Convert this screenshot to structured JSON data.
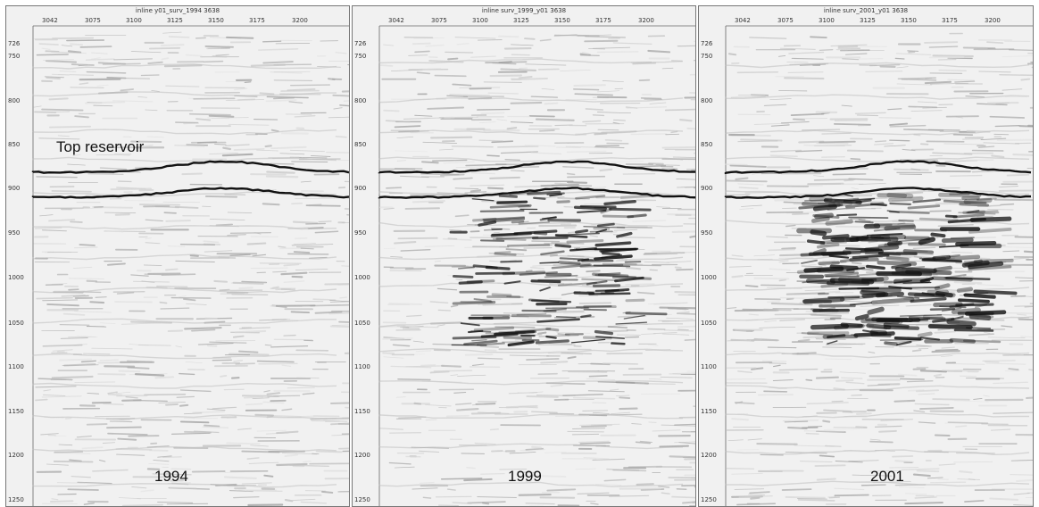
{
  "panels": [
    {
      "title": "inline y01_surv_1994 3638",
      "year": "1994",
      "anomaly": 0
    },
    {
      "title": "inline surv_1999_y01 3638",
      "year": "1999",
      "anomaly": 1
    },
    {
      "title": "inline surv_2001_y01 3638",
      "year": "2001",
      "anomaly": 2
    }
  ],
  "x_ticks": [
    "3042",
    "3075",
    "3100",
    "3125",
    "3150",
    "3175",
    "3200"
  ],
  "y_ticks": [
    "726",
    "750",
    "800",
    "850",
    "900",
    "950",
    "1000",
    "1050",
    "1100",
    "1150",
    "1200",
    "1250"
  ],
  "annotation": "Top reservoir",
  "colors": {
    "background": "#f1f1f1",
    "horizon": "#111111",
    "amplitude": "#111111",
    "frame": "#777777"
  }
}
